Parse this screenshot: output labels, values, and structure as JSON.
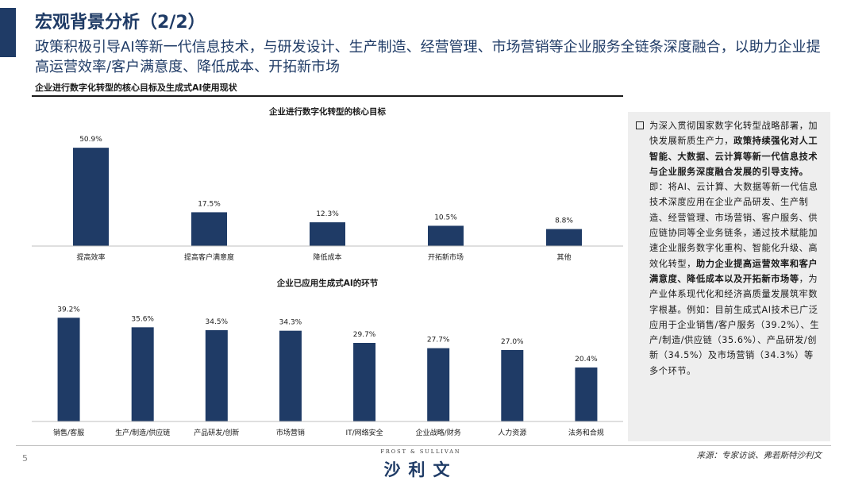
{
  "header": {
    "title": "宏观背景分析（2/2）",
    "subtitle": "政策积极引导AI等新一代信息技术，与研发设计、生产制造、经营管理、市场营销等企业服务全链条深度融合，以助力企业提高运营效率/客户满意度、降低成本、开拓新市场"
  },
  "section_label": "企业进行数字化转型的核心目标及生成式AI使用现状",
  "colors": {
    "accent": "#1f3b66",
    "bar": "#1f3b66",
    "panel": "#eeeeee"
  },
  "chart_data": [
    {
      "type": "bar",
      "title": "企业进行数字化转型的核心目标",
      "categories": [
        "提高效率",
        "提高客户满意度",
        "降低成本",
        "开拓新市场",
        "其他"
      ],
      "values": [
        50.9,
        17.5,
        12.3,
        10.5,
        8.8
      ],
      "value_labels": [
        "50.9%",
        "17.5%",
        "12.3%",
        "10.5%",
        "8.8%"
      ],
      "unit": "%",
      "ylim": [
        0,
        60
      ],
      "grid": false,
      "axis_labels_visible": false
    },
    {
      "type": "bar",
      "title": "企业已应用生成式AI的环节",
      "categories": [
        "销售/客服",
        "生产/制造/供应链",
        "产品研发/创新",
        "市场营销",
        "IT/网络安全",
        "企业战略/财务",
        "人力资源",
        "法务和合规"
      ],
      "values": [
        39.2,
        35.6,
        34.5,
        34.3,
        29.7,
        27.7,
        27.0,
        20.4
      ],
      "value_labels": [
        "39.2%",
        "35.6%",
        "34.5%",
        "34.3%",
        "29.7%",
        "27.7%",
        "27.0%",
        "20.4%"
      ],
      "unit": "%",
      "ylim": [
        0,
        45
      ],
      "grid": false,
      "axis_labels_visible": false
    }
  ],
  "side_panel": {
    "bullet_icon": "square-bullet-icon",
    "segments": [
      {
        "text": "为深入贯彻国家数字化转型战略部署，加快发展新质生产力，",
        "bold": false
      },
      {
        "text": "政策持续强化对人工智能、大数据、云计算等新一代信息技术与企业服务深度融合发展的引导支持。",
        "bold": true
      },
      {
        "text": "即：将AI、云计算、大数据等新一代信息技术深度应用在企业产品研发、生产制造、经营管理、市场营销、客户服务、供应链协同等全业务链条，通过技术赋能加速企业服务数字化重构、智能化升级、高效化转型，",
        "bold": false
      },
      {
        "text": "助力企业提高运营效率和客户满意度、降低成本以及开拓新市场等",
        "bold": true
      },
      {
        "text": "，为产业体系现代化和经济高质量发展筑牢数字根基。例如：目前生成式AI技术已广泛应用于企业销售/客户服务（39.2%）、生产/制造/供应链（35.6%）、产品研发/创新（34.5%）及市场营销（34.3%）等多个环节。",
        "bold": false
      }
    ]
  },
  "footer": {
    "page_number": "5",
    "logo_top": "FROST & SULLIVAN",
    "logo_main": "沙利文",
    "source": "来源：专家访谈、弗若斯特沙利文"
  }
}
